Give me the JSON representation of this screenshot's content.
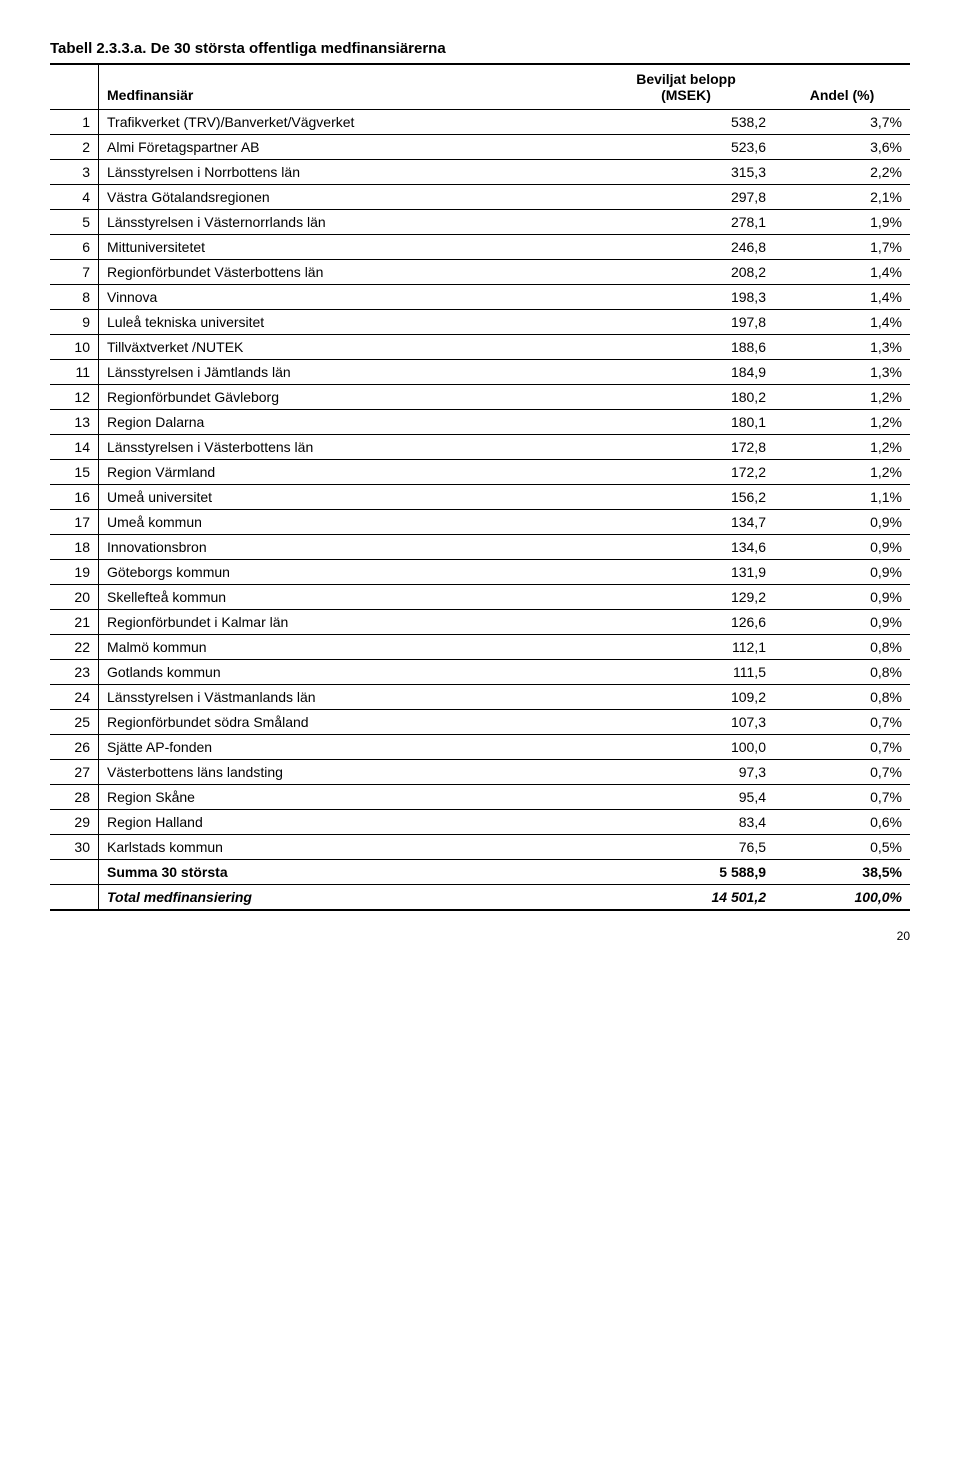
{
  "title": "Tabell 2.3.3.a. De 30 största offentliga medfinansiärerna",
  "header": {
    "financier": "Medfinansiär",
    "value": "Beviljat belopp\n(MSEK)",
    "value_line1": "Beviljat belopp",
    "value_line2": "(MSEK)",
    "share": "Andel (%)"
  },
  "rows": [
    {
      "idx": "1",
      "name": "Trafikverket (TRV)/Banverket/Vägverket",
      "val": "538,2",
      "pct": "3,7%"
    },
    {
      "idx": "2",
      "name": "Almi Företagspartner AB",
      "val": "523,6",
      "pct": "3,6%"
    },
    {
      "idx": "3",
      "name": "Länsstyrelsen i Norrbottens län",
      "val": "315,3",
      "pct": "2,2%"
    },
    {
      "idx": "4",
      "name": "Västra Götalandsregionen",
      "val": "297,8",
      "pct": "2,1%"
    },
    {
      "idx": "5",
      "name": "Länsstyrelsen i Västernorrlands län",
      "val": "278,1",
      "pct": "1,9%"
    },
    {
      "idx": "6",
      "name": "Mittuniversitetet",
      "val": "246,8",
      "pct": "1,7%"
    },
    {
      "idx": "7",
      "name": "Regionförbundet Västerbottens län",
      "val": "208,2",
      "pct": "1,4%"
    },
    {
      "idx": "8",
      "name": "Vinnova",
      "val": "198,3",
      "pct": "1,4%"
    },
    {
      "idx": "9",
      "name": "Luleå tekniska universitet",
      "val": "197,8",
      "pct": "1,4%"
    },
    {
      "idx": "10",
      "name": "Tillväxtverket /NUTEK",
      "val": "188,6",
      "pct": "1,3%"
    },
    {
      "idx": "11",
      "name": "Länsstyrelsen i Jämtlands län",
      "val": "184,9",
      "pct": "1,3%"
    },
    {
      "idx": "12",
      "name": "Regionförbundet Gävleborg",
      "val": "180,2",
      "pct": "1,2%"
    },
    {
      "idx": "13",
      "name": "Region Dalarna",
      "val": "180,1",
      "pct": "1,2%"
    },
    {
      "idx": "14",
      "name": "Länsstyrelsen i Västerbottens län",
      "val": "172,8",
      "pct": "1,2%"
    },
    {
      "idx": "15",
      "name": "Region Värmland",
      "val": "172,2",
      "pct": "1,2%"
    },
    {
      "idx": "16",
      "name": "Umeå universitet",
      "val": "156,2",
      "pct": "1,1%"
    },
    {
      "idx": "17",
      "name": "Umeå kommun",
      "val": "134,7",
      "pct": "0,9%"
    },
    {
      "idx": "18",
      "name": "Innovationsbron",
      "val": "134,6",
      "pct": "0,9%"
    },
    {
      "idx": "19",
      "name": "Göteborgs kommun",
      "val": "131,9",
      "pct": "0,9%"
    },
    {
      "idx": "20",
      "name": "Skellefteå kommun",
      "val": "129,2",
      "pct": "0,9%"
    },
    {
      "idx": "21",
      "name": "Regionförbundet i Kalmar län",
      "val": "126,6",
      "pct": "0,9%"
    },
    {
      "idx": "22",
      "name": "Malmö kommun",
      "val": "112,1",
      "pct": "0,8%"
    },
    {
      "idx": "23",
      "name": "Gotlands kommun",
      "val": "111,5",
      "pct": "0,8%"
    },
    {
      "idx": "24",
      "name": "Länsstyrelsen i Västmanlands län",
      "val": "109,2",
      "pct": "0,8%"
    },
    {
      "idx": "25",
      "name": "Regionförbundet södra Småland",
      "val": "107,3",
      "pct": "0,7%"
    },
    {
      "idx": "26",
      "name": "Sjätte AP-fonden",
      "val": "100,0",
      "pct": "0,7%"
    },
    {
      "idx": "27",
      "name": "Västerbottens läns landsting",
      "val": "97,3",
      "pct": "0,7%"
    },
    {
      "idx": "28",
      "name": "Region Skåne",
      "val": "95,4",
      "pct": "0,7%"
    },
    {
      "idx": "29",
      "name": "Region Halland",
      "val": "83,4",
      "pct": "0,6%"
    },
    {
      "idx": "30",
      "name": "Karlstads kommun",
      "val": "76,5",
      "pct": "0,5%"
    }
  ],
  "summary": {
    "label": "Summa 30 största",
    "val": "5 588,9",
    "pct": "38,5%"
  },
  "total": {
    "label": "Total medfinansiering",
    "val": "14 501,2",
    "pct": "100,0%"
  },
  "page_number": "20",
  "style": {
    "font_family": "Arial",
    "title_fontsize": 15,
    "body_fontsize": 14,
    "border_color": "#000000",
    "background_color": "#ffffff",
    "text_color": "#000000"
  }
}
